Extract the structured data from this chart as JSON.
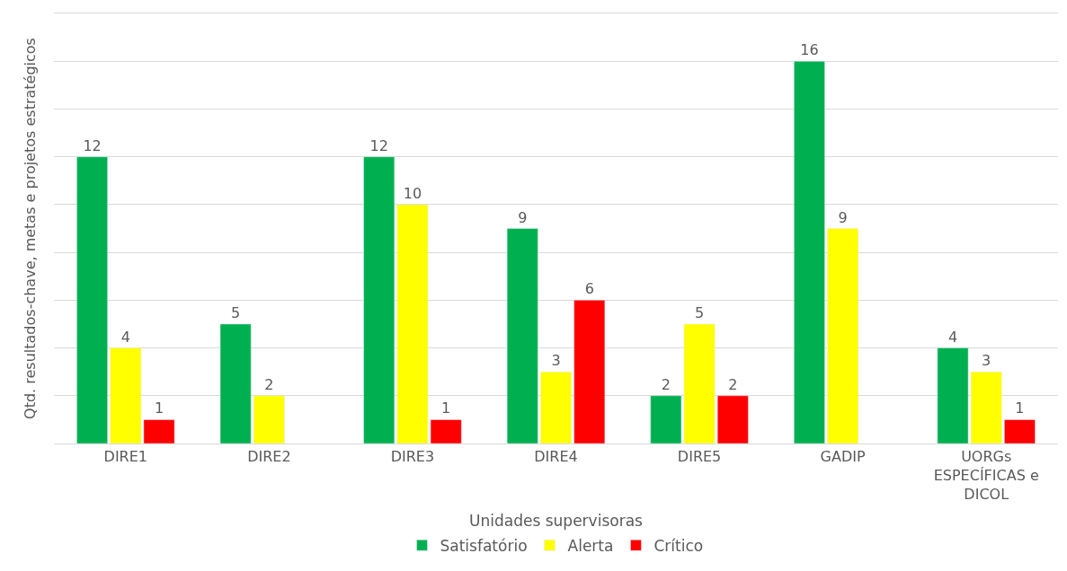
{
  "chart_data": {
    "type": "bar",
    "xlabel": "Unidades supervisoras",
    "ylabel": "Qtd. resultados-chave, metas e projetos estratégicos",
    "categories": [
      "DIRE1",
      "DIRE2",
      "DIRE3",
      "DIRE4",
      "DIRE5",
      "GADIP",
      "UORGs ESPECÍFICAS e DICOL"
    ],
    "series": [
      {
        "name": "Satisfatório",
        "color": "#00b050",
        "values": [
          12,
          5,
          12,
          9,
          2,
          16,
          4
        ]
      },
      {
        "name": "Alerta",
        "color": "#ffff00",
        "values": [
          4,
          2,
          10,
          3,
          5,
          9,
          3
        ]
      },
      {
        "name": "Crítico",
        "color": "#ff0000",
        "values": [
          1,
          null,
          1,
          6,
          2,
          null,
          1
        ]
      }
    ],
    "ylim": [
      0,
      18
    ],
    "yticks": [
      {
        "value": 0,
        "label": null
      },
      {
        "value": 2,
        "label": null
      },
      {
        "value": 4,
        "label": null
      },
      {
        "value": 6,
        "label": null
      },
      {
        "value": 8,
        "label": null
      },
      {
        "value": 10,
        "label": null
      },
      {
        "value": 12,
        "label": null
      },
      {
        "value": 14,
        "label": null
      },
      {
        "value": 16,
        "label": null
      }
    ],
    "tick_labels": "x",
    "grid": "y",
    "legend": "bottom",
    "data_labels": true
  }
}
